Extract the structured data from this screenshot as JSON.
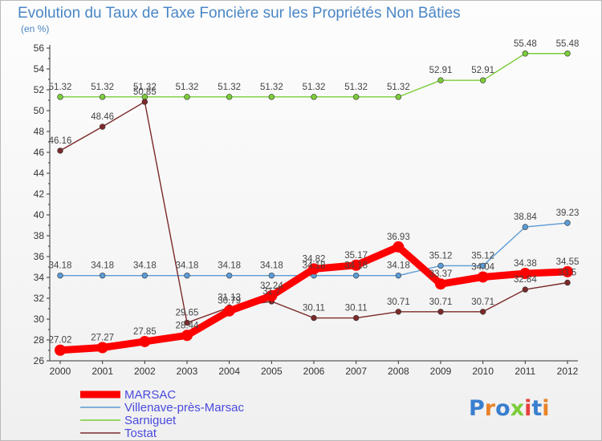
{
  "chart_data": {
    "type": "line",
    "title": "Evolution du Taux de Taxe Foncière sur les Propriétés Non Bâties",
    "ylabel": "(en %)",
    "xlabel": "",
    "x": [
      "2000",
      "2001",
      "2002",
      "2003",
      "2004",
      "2005",
      "2006",
      "2007",
      "2008",
      "2009",
      "2010",
      "2011",
      "2012"
    ],
    "ylim": [
      26,
      56
    ],
    "ytick_step": 2,
    "grid": false,
    "legend_position": "bottom-left",
    "series": [
      {
        "name": "MARSAC",
        "color": "#ff0000",
        "values": [
          27.02,
          27.27,
          27.85,
          28.44,
          30.79,
          32.24,
          34.82,
          35.17,
          36.93,
          33.37,
          34.04,
          34.38,
          34.55
        ],
        "labels": [
          "27.02",
          "27.27",
          "27.85",
          "28.44",
          "30.79",
          "32.24",
          "34.82",
          "35.17",
          "36.93",
          "33.37",
          "34.04",
          "34.38",
          "34.55"
        ]
      },
      {
        "name": "Villenave-près-Marsac",
        "color": "#5b9bd5",
        "values": [
          34.18,
          34.18,
          34.18,
          34.18,
          34.18,
          34.18,
          34.18,
          34.18,
          34.18,
          35.12,
          35.12,
          38.84,
          39.23
        ],
        "labels": [
          "34.18",
          "34.18",
          "34.18",
          "34.18",
          "34.18",
          "34.18",
          "34.18",
          "34.18",
          "34.18",
          "35.12",
          "35.12",
          "38.84",
          "39.23"
        ]
      },
      {
        "name": "Sarniguet",
        "color": "#7ccd3a",
        "values": [
          51.32,
          51.32,
          51.32,
          51.32,
          51.32,
          51.32,
          51.32,
          51.32,
          51.32,
          52.91,
          52.91,
          55.48,
          55.48
        ],
        "labels": [
          "51.32",
          "51.32",
          "51.32",
          "51.32",
          "51.32",
          "51.32",
          "51.32",
          "51.32",
          "51.32",
          "52.91",
          "52.91",
          "55.48",
          "55.48"
        ]
      },
      {
        "name": "Tostat",
        "color": "#7b2a2a",
        "values": [
          46.16,
          48.46,
          50.85,
          29.65,
          31.13,
          31.7,
          30.11,
          30.11,
          30.71,
          30.71,
          30.71,
          32.84,
          33.5
        ],
        "labels": [
          "46.16",
          "48.46",
          "50.85",
          "29.65",
          "31.13",
          "31.7",
          "30.11",
          "30.11",
          "30.71",
          "30.71",
          "30.71",
          "32.84",
          "33.5"
        ]
      }
    ]
  },
  "branding": {
    "logo_text": "Proxiti",
    "letter_colors": [
      "#3a7fcf",
      "#e8832a",
      "#3a7fcf",
      "#7ccd3a",
      "#e84040",
      "#3a7fcf",
      "#e8832a"
    ]
  }
}
